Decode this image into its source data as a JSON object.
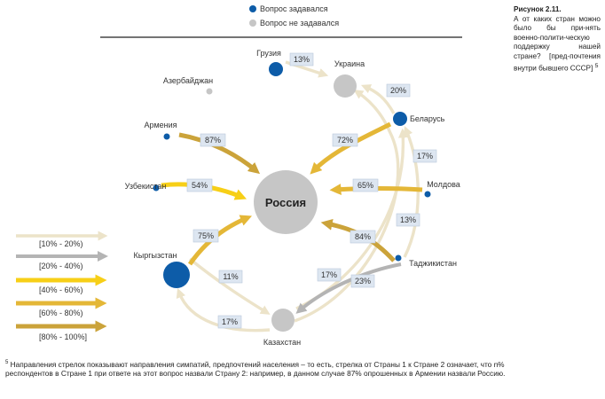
{
  "legend_top": {
    "asked": "Вопрос задавался",
    "not_asked": "Вопрос не задавался"
  },
  "caption": {
    "title": "Рисунок 2.11.",
    "text": "А от каких стран можно было бы при-нять военно-полити-ческую поддержку нашей стране? [пред-почтения внутри бывшего СССР]",
    "footnote_mark": "5"
  },
  "center_label": "Россия",
  "countries": {
    "georgia": "Грузия",
    "ukraine": "Украина",
    "azerbaijan": "Азербайджан",
    "belarus": "Беларусь",
    "armenia": "Армения",
    "uzbekistan": "Узбекистан",
    "moldova": "Молдова",
    "kyrgyzstan": "Кыргызстан",
    "tajikistan": "Таджикистан",
    "kazakhstan": "Казахстан"
  },
  "flows": [
    {
      "from": "Грузия",
      "to": "Украина",
      "percent": "13%"
    },
    {
      "from": "Беларусь",
      "to": "Украина",
      "percent": "20%"
    },
    {
      "from": "Беларусь",
      "to": "Россия",
      "percent": "72%"
    },
    {
      "from": "Армения",
      "to": "Россия",
      "percent": "87%"
    },
    {
      "from": "Узбекистан",
      "to": "Россия",
      "percent": "54%"
    },
    {
      "from": "Молдова",
      "to": "Россия",
      "percent": "65%"
    },
    {
      "from": "Кыргызстан",
      "to": "Россия",
      "percent": "75%"
    },
    {
      "from": "Таджикистан",
      "to": "Россия",
      "percent": "84%"
    },
    {
      "from": "Таджикистан",
      "to": "Беларусь",
      "percent": "17%"
    },
    {
      "from": "Казахстан",
      "to": "Беларусь",
      "percent": "13%"
    },
    {
      "from": "Кыргызстан",
      "to": "Казахстан",
      "percent": "11%"
    },
    {
      "from": "Казахстан",
      "to": "Кыргызстан",
      "percent": "17%"
    },
    {
      "from": "Казахстан",
      "to": "Украина",
      "percent": "17%"
    },
    {
      "from": "Таджикистан",
      "to": "Казахстан",
      "percent": "23%"
    }
  ],
  "legend_ranges": [
    "[10% - 20%)",
    "[20% - 40%)",
    "[40% - 60%)",
    "[60% - 80%)",
    "[80% - 100%]"
  ],
  "colors": {
    "asked": "#0d5ca8",
    "not_asked": "#c6c6c6",
    "range_10_20": "#ece3c9",
    "range_20_40": "#b4b4b4",
    "range_40_60": "#f7cf17",
    "range_60_80": "#e4b737",
    "range_80_100": "#cba33a"
  },
  "footnote": {
    "mark": "5",
    "text": "Направления стрелок показывают направления симпатий, предпочтений населения – то есть, стрелка от Страны 1 к Стране 2 означает, что n% респондентов в Стране 1 при ответе на этот вопрос назвали Страну 2: например, в данном случае 87% опрошенных в Армении назвали Россию."
  }
}
